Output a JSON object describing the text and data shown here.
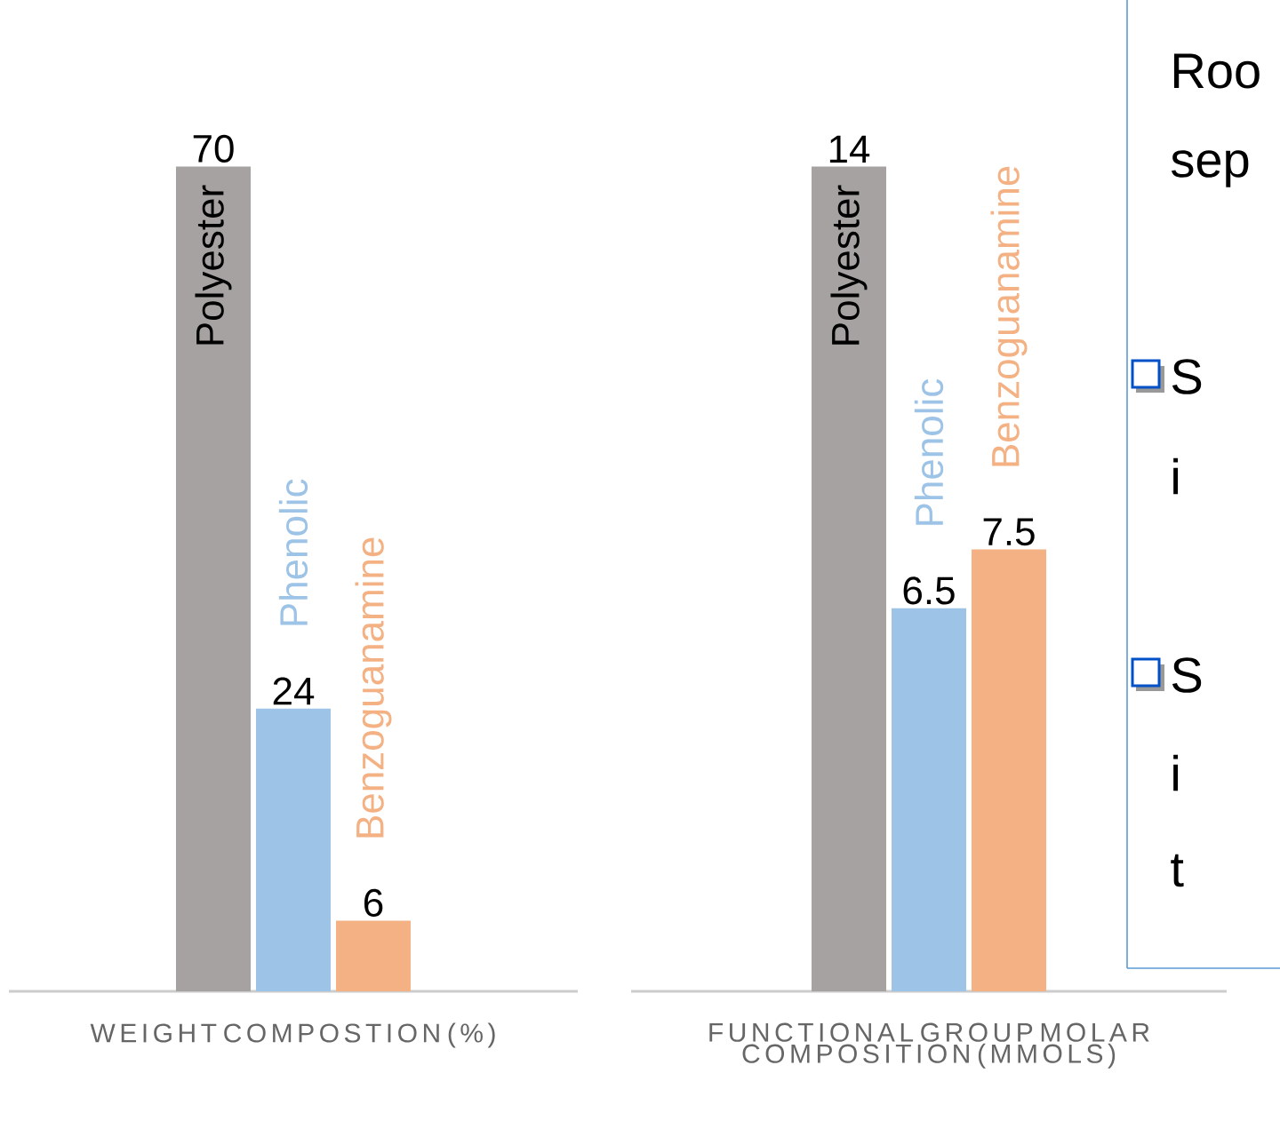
{
  "chart_data": [
    {
      "type": "bar",
      "xlabel": "WEIGHT COMPOSTION (%)",
      "categories": [
        null
      ],
      "data_labels": true,
      "series": [
        {
          "name": "Polyester",
          "color": "#a6a2a1",
          "values": [
            70
          ]
        },
        {
          "name": "Phenolic",
          "color": "#9dc3e6",
          "values": [
            24
          ]
        },
        {
          "name": "Benzoguanamine",
          "color": "#f4b183",
          "values": [
            6
          ]
        }
      ]
    },
    {
      "type": "bar",
      "xlabel": "FUNCTIONAL GROUP MOLAR COMPOSITION (MMOLS)",
      "categories": [
        null
      ],
      "data_labels": true,
      "series": [
        {
          "name": "Polyester",
          "color": "#a6a2a1",
          "values": [
            14
          ]
        },
        {
          "name": "Phenolic",
          "color": "#9dc3e6",
          "values": [
            6.5
          ]
        },
        {
          "name": "Benzoguanamine",
          "color": "#f4b183",
          "values": [
            7.5
          ]
        }
      ]
    },
    {
      "type": "other",
      "annotations": [
        "Roo",
        "sep",
        "S",
        "i",
        "S",
        "i",
        "t"
      ]
    }
  ]
}
